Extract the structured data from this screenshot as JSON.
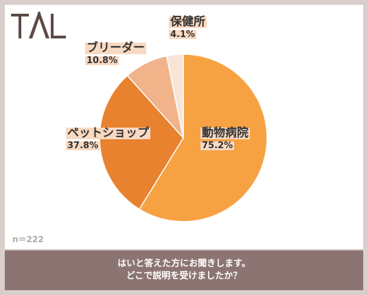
{
  "logo": {
    "text": "TAL"
  },
  "footer": {
    "line1": "はいと答えた方にお聞きします。",
    "line2": "どこで説明を受けましたか？"
  },
  "sample_size": "n＝222",
  "chart_data": {
    "type": "pie",
    "categories": [
      "動物病院",
      "ペットショップ",
      "ブリーダー",
      "保健所"
    ],
    "values": [
      75.2,
      37.8,
      10.8,
      4.1
    ],
    "value_labels": [
      "75.2%",
      "37.8%",
      "10.8%",
      "4.1%"
    ],
    "colors": [
      "#f6a243",
      "#e8822f",
      "#f0b38a",
      "#f9e4d8"
    ],
    "title": "",
    "xlabel": "",
    "ylabel": ""
  }
}
